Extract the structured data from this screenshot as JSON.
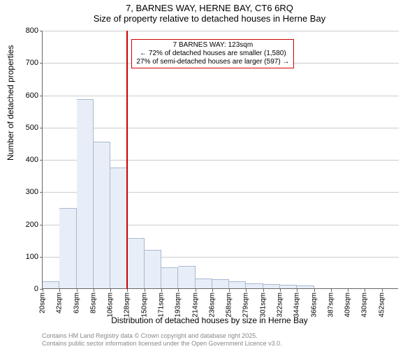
{
  "title": {
    "line1": "7, BARNES WAY, HERNE BAY, CT6 6RQ",
    "line2": "Size of property relative to detached houses in Herne Bay"
  },
  "chart": {
    "type": "histogram",
    "ylabel": "Number of detached properties",
    "xlabel": "Distribution of detached houses by size in Herne Bay",
    "ylim": [
      0,
      800
    ],
    "ytick_step": 100,
    "yticks": [
      0,
      100,
      200,
      300,
      400,
      500,
      600,
      700,
      800
    ],
    "xticks": [
      "20sqm",
      "42sqm",
      "63sqm",
      "85sqm",
      "106sqm",
      "128sqm",
      "150sqm",
      "171sqm",
      "193sqm",
      "214sqm",
      "236sqm",
      "258sqm",
      "279sqm",
      "301sqm",
      "322sqm",
      "344sqm",
      "366sqm",
      "387sqm",
      "409sqm",
      "430sqm",
      "452sqm"
    ],
    "bars": [
      22,
      248,
      585,
      454,
      375,
      155,
      120,
      65,
      70,
      30,
      28,
      22,
      15,
      12,
      10,
      8,
      0,
      0,
      0,
      0,
      0
    ],
    "bar_color": "#e8eef7",
    "bar_border_color": "#aab8d0",
    "grid_color": "#cccccc",
    "axis_color": "#666666",
    "background_color": "#ffffff",
    "label_fontsize": 12,
    "tick_fontsize": 11,
    "xtick_fontsize": 10,
    "marker": {
      "position_index": 5,
      "color": "#cc0000",
      "width": 2
    },
    "annotation": {
      "line1": "7 BARNES WAY: 123sqm",
      "line2": "← 72% of detached houses are smaller (1,580)",
      "line3": "27% of semi-detached houses are larger (597) →",
      "border_color": "#cc0000",
      "background_color": "#ffffff",
      "fontsize": 10
    }
  },
  "footer": {
    "line1": "Contains HM Land Registry data © Crown copyright and database right 2025.",
    "line2": "Contains public sector information licensed under the Open Government Licence v3.0.",
    "color": "#888888",
    "fontsize": 9
  }
}
